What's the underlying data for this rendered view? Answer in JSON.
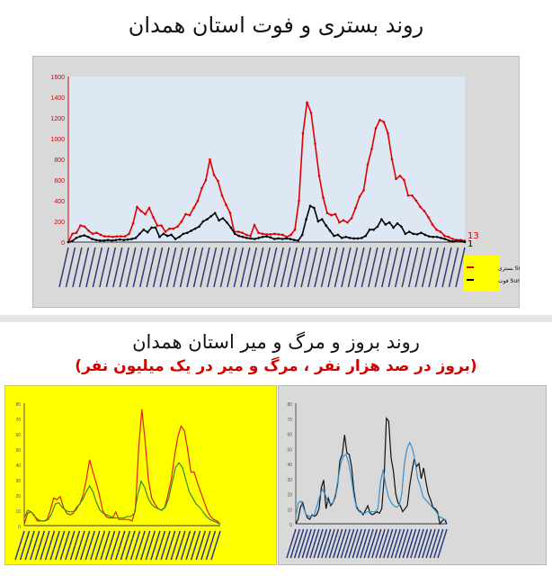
{
  "header": {
    "title": "روند بستری و فوت استان همدان"
  },
  "section2": {
    "title": "روند بروز و مرگ و میر استان همدان",
    "subtitle": "(بروز در صد هزار نفر ، مرگ و میر در یک میلیون نفر)"
  },
  "chart_data": [
    {
      "type": "line",
      "ylim": [
        0,
        1600
      ],
      "yticks": [
        0,
        200,
        400,
        600,
        800,
        1000,
        1200,
        1400,
        1600
      ],
      "grid": false,
      "legend_placement": "right",
      "legend": [
        "Sum of بستری",
        "Sum of فوت"
      ],
      "end_labels": [
        "13",
        "1"
      ],
      "series": [
        {
          "name": "Sum of بستری",
          "color": "#e00000",
          "values": [
            0,
            80,
            90,
            160,
            150,
            110,
            80,
            90,
            70,
            55,
            55,
            50,
            55,
            55,
            55,
            80,
            180,
            340,
            300,
            270,
            330,
            240,
            160,
            160,
            100,
            130,
            130,
            150,
            200,
            270,
            260,
            330,
            400,
            520,
            600,
            800,
            650,
            590,
            450,
            360,
            280,
            100,
            100,
            90,
            70,
            60,
            165,
            90,
            80,
            75,
            75,
            80,
            75,
            70,
            50,
            70,
            120,
            400,
            1050,
            1350,
            1250,
            950,
            640,
            430,
            280,
            260,
            270,
            190,
            210,
            190,
            230,
            330,
            440,
            500,
            750,
            900,
            1100,
            1180,
            1160,
            1050,
            800,
            610,
            640,
            600,
            450,
            450,
            400,
            340,
            300,
            240,
            170,
            120,
            100,
            60,
            50,
            30,
            20,
            20,
            13
          ]
        },
        {
          "name": "Sum of فوت",
          "color": "#000000",
          "values": [
            0,
            10,
            40,
            55,
            65,
            50,
            30,
            20,
            15,
            15,
            20,
            15,
            20,
            25,
            20,
            25,
            30,
            40,
            80,
            120,
            95,
            140,
            140,
            50,
            80,
            60,
            70,
            30,
            50,
            80,
            90,
            110,
            130,
            150,
            200,
            220,
            250,
            280,
            210,
            230,
            190,
            140,
            80,
            60,
            50,
            40,
            35,
            30,
            40,
            50,
            55,
            45,
            30,
            35,
            30,
            35,
            30,
            20,
            15,
            70,
            220,
            350,
            330,
            200,
            220,
            160,
            110,
            60,
            70,
            40,
            50,
            40,
            35,
            35,
            40,
            60,
            120,
            120,
            150,
            220,
            170,
            190,
            140,
            180,
            150,
            80,
            100,
            80,
            75,
            90,
            70,
            55,
            50,
            50,
            40,
            30,
            15,
            5,
            15,
            10,
            1
          ]
        }
      ]
    },
    {
      "type": "line",
      "ylim": [
        0,
        80
      ],
      "yticks": [
        0,
        10,
        20,
        30,
        40,
        50,
        60,
        70,
        80
      ],
      "background": "#ffff00",
      "series": [
        {
          "color": "#e0201a",
          "values": [
            1,
            8,
            9,
            7,
            3,
            3,
            3,
            4,
            10,
            18,
            17,
            19,
            12,
            8,
            7,
            8,
            12,
            14,
            20,
            30,
            43,
            35,
            28,
            20,
            10,
            6,
            5,
            5,
            9,
            4,
            4,
            4,
            4,
            3,
            10,
            50,
            76,
            55,
            30,
            18,
            14,
            11,
            10,
            12,
            20,
            30,
            45,
            58,
            65,
            62,
            50,
            35,
            35,
            28,
            22,
            16,
            10,
            6,
            4,
            3,
            1
          ]
        },
        {
          "color": "#2e8b2e",
          "values": [
            5,
            10,
            9,
            6,
            4,
            3,
            3,
            4,
            8,
            14,
            15,
            12,
            10,
            9,
            9,
            10,
            14,
            17,
            22,
            26,
            22,
            15,
            10,
            8,
            7,
            6,
            5,
            5,
            5,
            5,
            6,
            6,
            8,
            20,
            29,
            25,
            18,
            14,
            12,
            11,
            10,
            12,
            18,
            28,
            38,
            41,
            38,
            30,
            22,
            18,
            14,
            12,
            9,
            6,
            4,
            3,
            2,
            1
          ]
        }
      ]
    },
    {
      "type": "line",
      "ylim": [
        0,
        80
      ],
      "yticks": [
        0,
        10,
        20,
        30,
        40,
        50,
        60,
        70,
        80
      ],
      "background": "#d9d9d9",
      "series": [
        {
          "color": "#111111",
          "values": [
            0,
            3,
            11,
            14,
            8,
            4,
            3,
            6,
            5,
            6,
            10,
            24,
            29,
            10,
            17,
            12,
            14,
            18,
            26,
            42,
            46,
            59,
            47,
            46,
            38,
            22,
            12,
            9,
            8,
            6,
            9,
            12,
            7,
            6,
            7,
            8,
            7,
            10,
            30,
            70,
            68,
            44,
            35,
            20,
            14,
            12,
            8,
            10,
            12,
            25,
            35,
            43,
            38,
            40,
            30,
            37,
            28,
            20,
            16,
            11,
            10,
            8,
            0,
            2,
            3,
            0
          ]
        },
        {
          "color": "#3a8fc8",
          "values": [
            5,
            14,
            15,
            10,
            6,
            5,
            5,
            6,
            12,
            18,
            23,
            20,
            15,
            13,
            14,
            20,
            30,
            40,
            45,
            46,
            40,
            30,
            18,
            10,
            8,
            7,
            7,
            8,
            8,
            8,
            8,
            10,
            28,
            36,
            25,
            18,
            14,
            12,
            11,
            12,
            20,
            40,
            50,
            54,
            50,
            42,
            30,
            25,
            18,
            16,
            14,
            12,
            10,
            8,
            5,
            4,
            3,
            2
          ]
        }
      ]
    }
  ]
}
